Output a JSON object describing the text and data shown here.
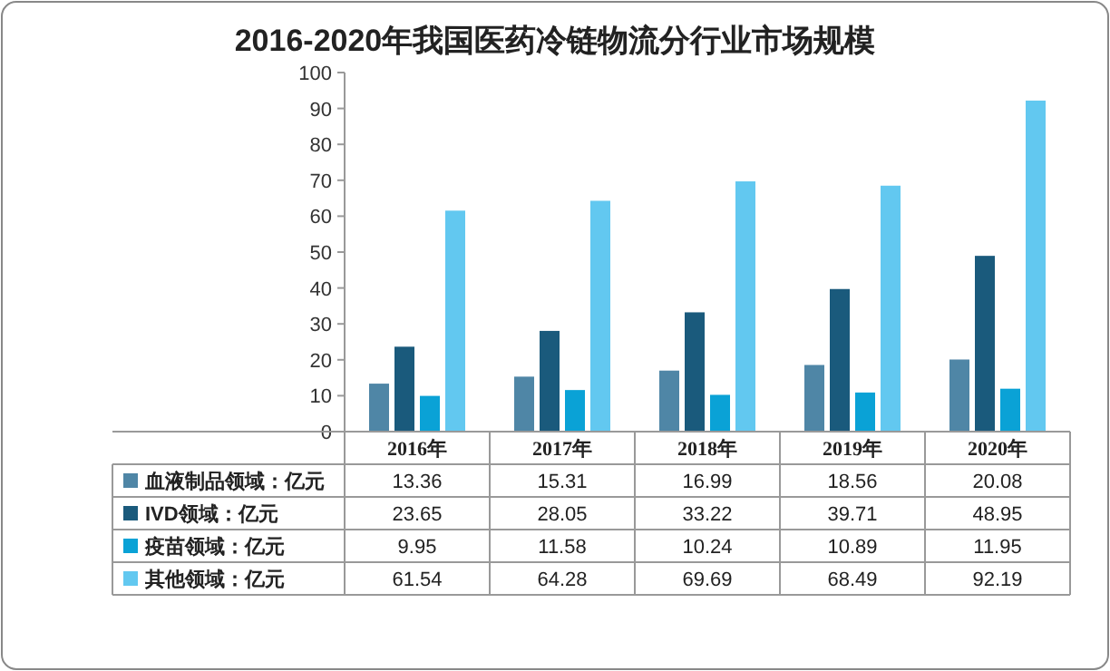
{
  "chart_data": {
    "type": "bar",
    "title": "2016-2020年我国医药冷链物流分行业市场规模",
    "categories": [
      "2016年",
      "2017年",
      "2018年",
      "2019年",
      "2020年"
    ],
    "series": [
      {
        "name": "血液制品领域：亿元",
        "color": "#4f86a6",
        "values": [
          13.36,
          15.31,
          16.99,
          18.56,
          20.08
        ]
      },
      {
        "name": "IVD领域：亿元",
        "color": "#1a5a7c",
        "values": [
          23.65,
          28.05,
          33.22,
          39.71,
          48.95
        ]
      },
      {
        "name": "疫苗领域：亿元",
        "color": "#0aa2d6",
        "values": [
          9.95,
          11.58,
          10.24,
          10.89,
          11.95
        ]
      },
      {
        "name": "其他领域：亿元",
        "color": "#62c8f0",
        "values": [
          61.54,
          64.28,
          69.69,
          68.49,
          92.19
        ]
      }
    ],
    "ylim": [
      0,
      100
    ],
    "yticks": [
      0,
      10,
      20,
      30,
      40,
      50,
      60,
      70,
      80,
      90,
      100
    ],
    "data_labels": true,
    "legend": "bottom",
    "grid": false
  }
}
